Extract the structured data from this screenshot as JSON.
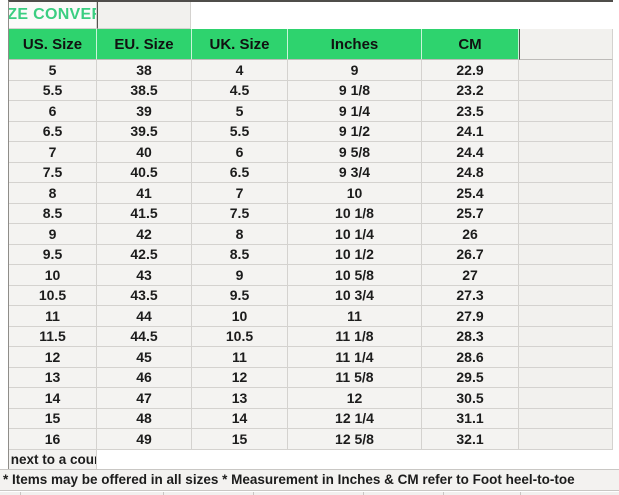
{
  "title": "MEN SHOE SIZE CONVERSION CHART",
  "chart_data": {
    "type": "table",
    "title": "MEN SHOE SIZE CONVERSION CHART",
    "columns": [
      "US. Size",
      "EU. Size",
      "UK. Size",
      "Inches",
      "CM"
    ],
    "rows": [
      [
        "5",
        "38",
        "4",
        "9",
        "22.9"
      ],
      [
        "5.5",
        "38.5",
        "4.5",
        "9 1/8",
        "23.2"
      ],
      [
        "6",
        "39",
        "5",
        "9 1/4",
        "23.5"
      ],
      [
        "6.5",
        "39.5",
        "5.5",
        "9 1/2",
        "24.1"
      ],
      [
        "7",
        "40",
        "6",
        "9 5/8",
        "24.4"
      ],
      [
        "7.5",
        "40.5",
        "6.5",
        "9 3/4",
        "24.8"
      ],
      [
        "8",
        "41",
        "7",
        "10",
        "25.4"
      ],
      [
        "8.5",
        "41.5",
        "7.5",
        "10 1/8",
        "25.7"
      ],
      [
        "9",
        "42",
        "8",
        "10 1/4",
        "26"
      ],
      [
        "9.5",
        "42.5",
        "8.5",
        "10 1/2",
        "26.7"
      ],
      [
        "10",
        "43",
        "9",
        "10 5/8",
        "27"
      ],
      [
        "10.5",
        "43.5",
        "9.5",
        "10 3/4",
        "27.3"
      ],
      [
        "11",
        "44",
        "10",
        "11",
        "27.9"
      ],
      [
        "11.5",
        "44.5",
        "10.5",
        "11 1/8",
        "28.3"
      ],
      [
        "12",
        "45",
        "11",
        "11 1/4",
        "28.6"
      ],
      [
        "13",
        "46",
        "12",
        "11 5/8",
        "29.5"
      ],
      [
        "14",
        "47",
        "13",
        "12",
        "30.5"
      ],
      [
        "15",
        "48",
        "14",
        "12 1/4",
        "31.1"
      ],
      [
        "16",
        "49",
        "15",
        "12 5/8",
        "32.1"
      ]
    ]
  },
  "notes": {
    "line1": "NOTE* US Conversions are listed next to a country region's nearest size equilent",
    "line2": "* Items may be offered in all sizes * Measurement in Inches & CM refer to Foot heel-to-toe"
  },
  "colors": {
    "header_bg": "#2ed36e",
    "title_text": "#3bce81",
    "cell_bg": "#f4f3f1",
    "grid_line": "#d4d2cf",
    "text": "#1c1c1c"
  }
}
